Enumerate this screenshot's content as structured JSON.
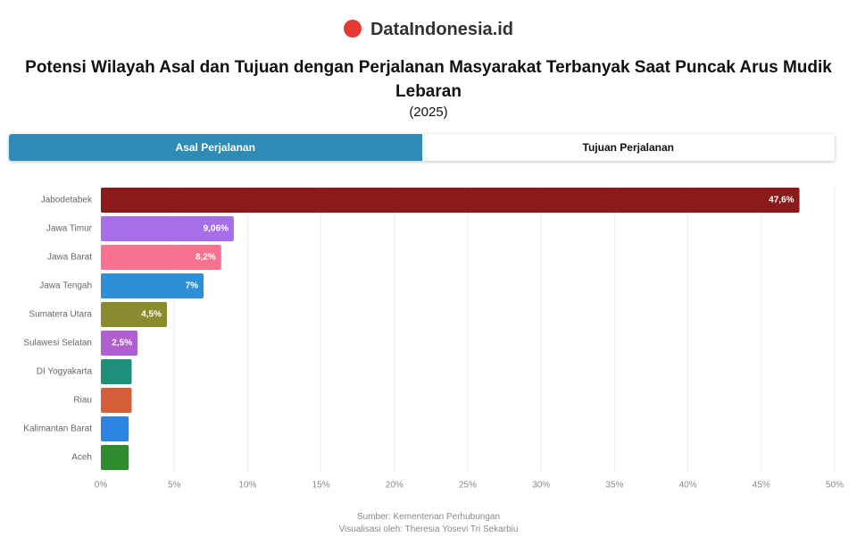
{
  "header": {
    "brand": "DataIndonesia.id",
    "title": "Potensi Wilayah Asal dan Tujuan dengan Perjalanan Masyarakat Terbanyak Saat Puncak Arus Mudik Lebaran",
    "subtitle": "(2025)"
  },
  "tabs": [
    "Asal Perjalanan",
    "Tujuan Perjalanan"
  ],
  "chart_data": {
    "type": "hbar",
    "categories": [
      "Jabodetabek",
      "Jawa Timur",
      "Jawa Barat",
      "Jawa Tengah",
      "Sumatera Utara",
      "Sulawesi Selatan",
      "DI Yogyakarta",
      "Riau",
      "Kalimantan Barat",
      "Aceh"
    ],
    "values": [
      47.6,
      9.06,
      8.2,
      7,
      4.5,
      2.5,
      2.1,
      2.1,
      1.9,
      1.9
    ],
    "value_labels": [
      "47,6%",
      "9,06%",
      "8,2%",
      "7%",
      "4,5%",
      "2,5%",
      null,
      null,
      null,
      null
    ],
    "colors": [
      "#8b1a1a",
      "#a66ee8",
      "#f7728e",
      "#2d8fd6",
      "#8a8a2e",
      "#b05fd0",
      "#1f8f7c",
      "#d45f3a",
      "#2d84e0",
      "#2e8b2e"
    ],
    "xlim": [
      0,
      50
    ],
    "xticks": [
      {
        "value": 0,
        "label": "0%"
      },
      {
        "value": 5,
        "label": "5%"
      },
      {
        "value": 10,
        "label": "10%"
      },
      {
        "value": 15,
        "label": "15%"
      },
      {
        "value": 20,
        "label": "20%"
      },
      {
        "value": 25,
        "label": "25%"
      },
      {
        "value": 30,
        "label": "30%"
      },
      {
        "value": 35,
        "label": "35%"
      },
      {
        "value": 40,
        "label": "40%"
      },
      {
        "value": 45,
        "label": "45%"
      },
      {
        "value": 50,
        "label": "50%"
      }
    ],
    "grid": true
  },
  "footer": {
    "source": "Sumber: Kementerian Perhubungan",
    "credit": "Visualisasi oleh: Theresia Yosevi Tri Sekarbiu"
  }
}
